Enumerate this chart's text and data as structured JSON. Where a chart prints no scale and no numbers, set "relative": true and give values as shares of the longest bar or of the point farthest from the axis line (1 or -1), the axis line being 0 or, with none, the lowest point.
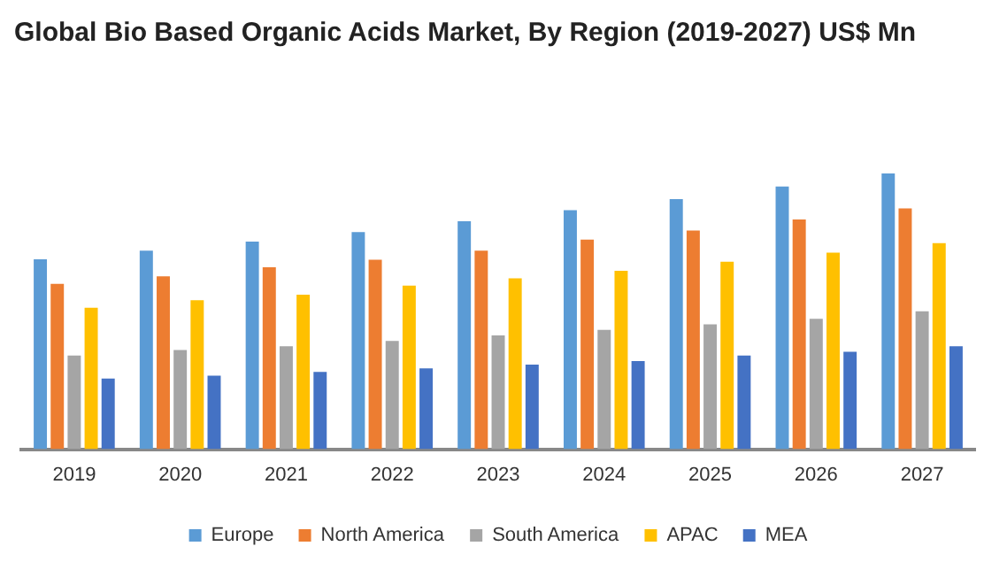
{
  "chart_data": {
    "type": "bar",
    "title": "Global Bio Based Organic Acids Market, By Region (2019-2027) US$ Mn",
    "relative": true,
    "categories": [
      "2019",
      "2020",
      "2021",
      "2022",
      "2023",
      "2024",
      "2025",
      "2026",
      "2027"
    ],
    "series": [
      {
        "name": "Europe",
        "color": "#5b9bd5",
        "values": [
          0.689,
          0.72,
          0.753,
          0.787,
          0.827,
          0.867,
          0.907,
          0.953,
          1
        ]
      },
      {
        "name": "North America",
        "color": "#ed7d31",
        "values": [
          0.6,
          0.627,
          0.66,
          0.687,
          0.72,
          0.76,
          0.793,
          0.833,
          0.873
        ]
      },
      {
        "name": "South America",
        "color": "#a5a5a5",
        "values": [
          0.34,
          0.36,
          0.373,
          0.393,
          0.413,
          0.433,
          0.453,
          0.473,
          0.5
        ]
      },
      {
        "name": "APAC",
        "color": "#ffc000",
        "values": [
          0.513,
          0.54,
          0.56,
          0.593,
          0.62,
          0.647,
          0.68,
          0.713,
          0.747
        ]
      },
      {
        "name": "MEA",
        "color": "#4472c4",
        "values": [
          0.256,
          0.267,
          0.28,
          0.293,
          0.307,
          0.32,
          0.34,
          0.353,
          0.373
        ]
      }
    ],
    "grid": false,
    "legend": "bottom"
  }
}
